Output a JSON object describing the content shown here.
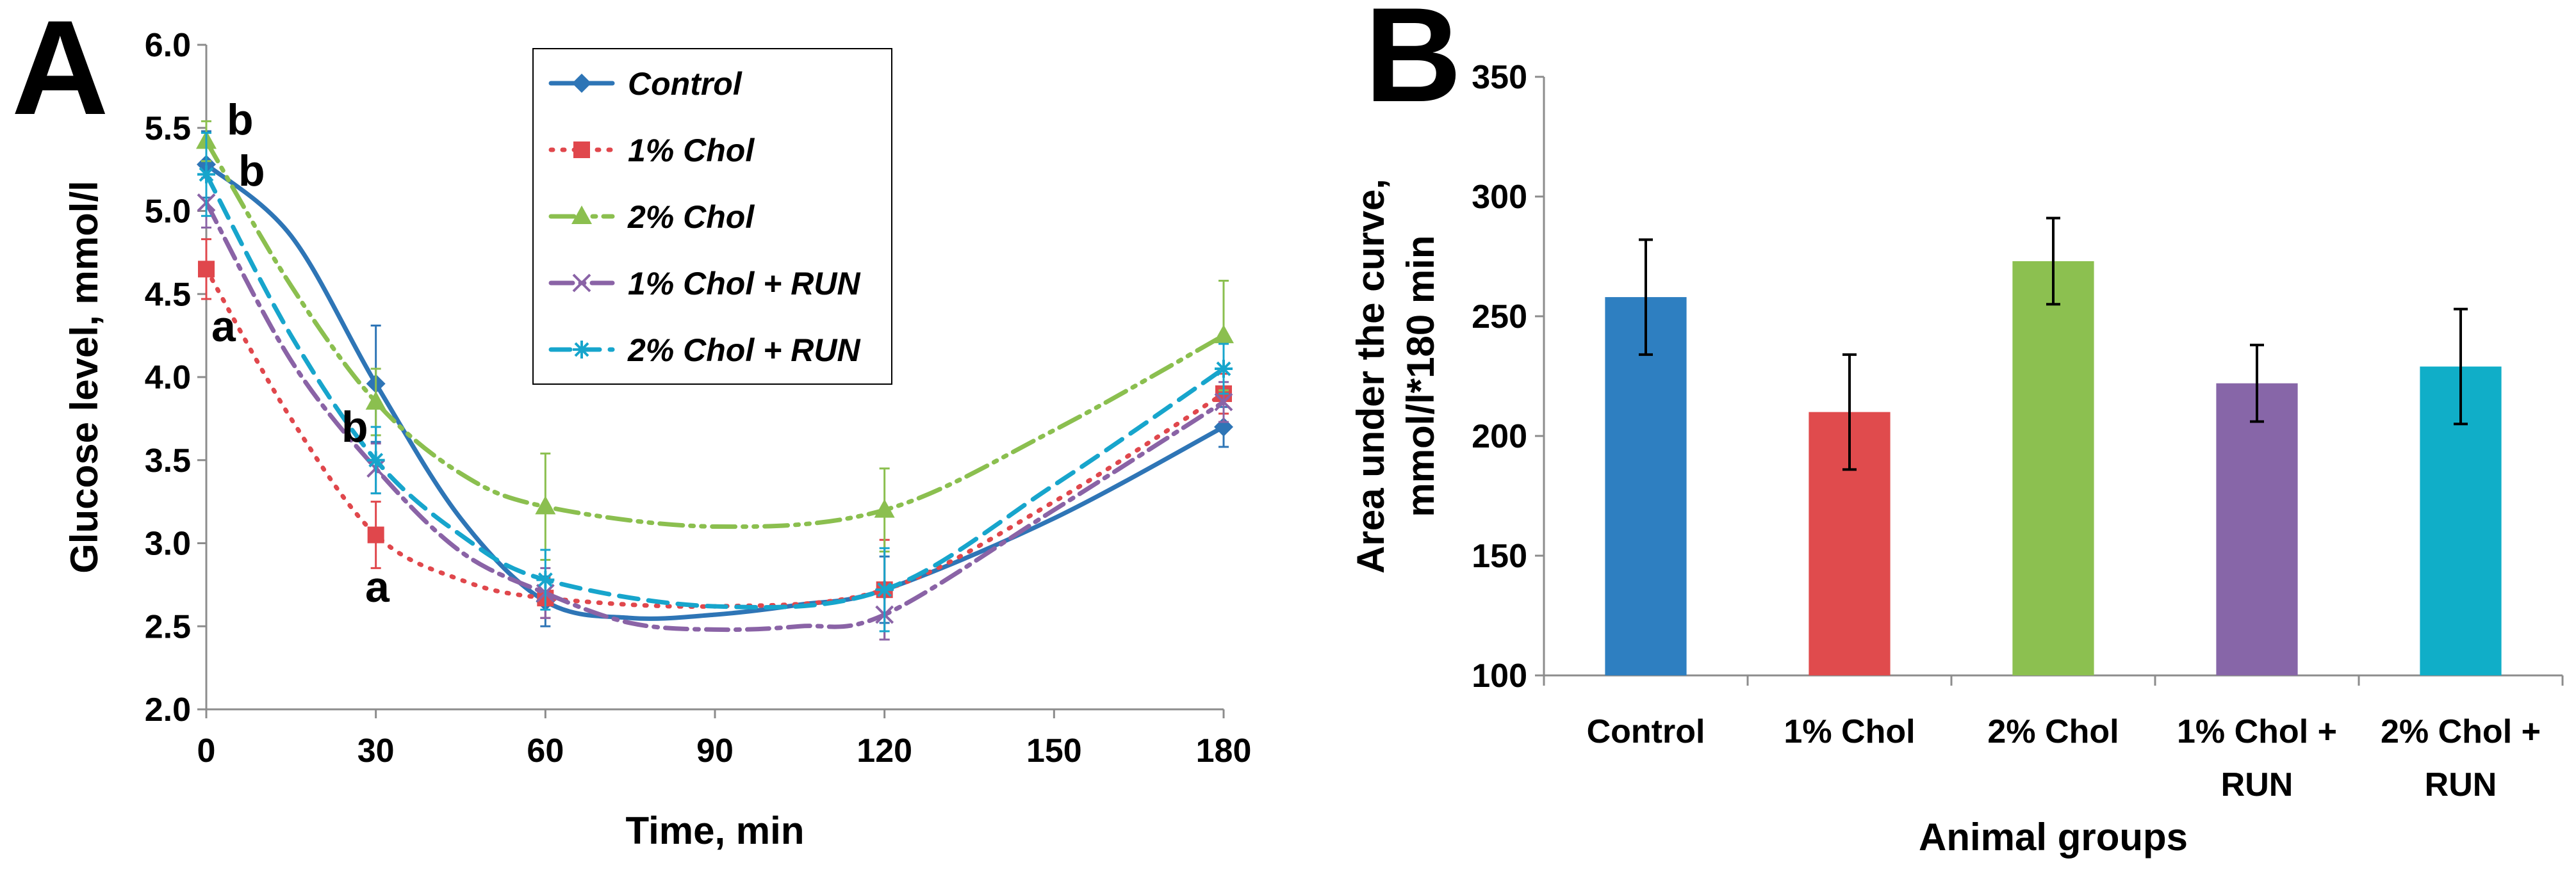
{
  "panels": {
    "a_label": "A",
    "b_label": "B"
  },
  "chart_data": [
    {
      "id": "A",
      "type": "line",
      "title": "",
      "xlabel": "Time, min",
      "ylabel": "Glucose level, mmol/l",
      "xlim": [
        0,
        180
      ],
      "ylim": [
        2.0,
        6.0
      ],
      "xticks": [
        0,
        30,
        60,
        90,
        120,
        150,
        180
      ],
      "yticks": [
        "2.0",
        "2.5",
        "3.0",
        "3.5",
        "4.0",
        "4.5",
        "5.0",
        "5.5",
        "6.0"
      ],
      "x": [
        0,
        30,
        60,
        120,
        180
      ],
      "legend_position": "top-center",
      "series": [
        {
          "name": "Control",
          "color": "#2e75b6",
          "dash": "solid",
          "marker": "diamond",
          "values": [
            5.28,
            3.96,
            2.65,
            2.72,
            3.7
          ],
          "errors": [
            0.2,
            0.35,
            0.15,
            0.2,
            0.12
          ],
          "curve": [
            [
              0,
              5.28
            ],
            [
              15,
              4.85
            ],
            [
              30,
              3.96
            ],
            [
              45,
              3.15
            ],
            [
              60,
              2.65
            ],
            [
              75,
              2.55
            ],
            [
              90,
              2.57
            ],
            [
              105,
              2.63
            ],
            [
              120,
              2.72
            ],
            [
              150,
              3.15
            ],
            [
              180,
              3.7
            ]
          ]
        },
        {
          "name": "1% Chol",
          "color": "#e0474c",
          "dash": "dot",
          "marker": "square",
          "values": [
            4.65,
            3.05,
            2.67,
            2.72,
            3.9
          ],
          "errors": [
            0.18,
            0.2,
            0.12,
            0.3,
            0.12
          ],
          "curve": [
            [
              0,
              4.65
            ],
            [
              15,
              3.75
            ],
            [
              30,
              3.05
            ],
            [
              45,
              2.78
            ],
            [
              60,
              2.67
            ],
            [
              90,
              2.62
            ],
            [
              120,
              2.72
            ],
            [
              150,
              3.25
            ],
            [
              180,
              3.9
            ]
          ]
        },
        {
          "name": "2% Chol",
          "color": "#8bbf4f",
          "dash": "dashdotdot",
          "marker": "triangle",
          "values": [
            5.42,
            3.85,
            3.22,
            3.2,
            4.25
          ],
          "errors": [
            0.12,
            0.2,
            0.32,
            0.25,
            0.33
          ],
          "curve": [
            [
              0,
              5.42
            ],
            [
              15,
              4.55
            ],
            [
              30,
              3.85
            ],
            [
              45,
              3.42
            ],
            [
              60,
              3.22
            ],
            [
              90,
              3.1
            ],
            [
              120,
              3.2
            ],
            [
              150,
              3.68
            ],
            [
              180,
              4.25
            ]
          ]
        },
        {
          "name": "1% Chol + RUN",
          "color": "#8a63a6",
          "dash": "dashdot",
          "marker": "x",
          "values": [
            5.05,
            3.45,
            2.7,
            2.57,
            3.85
          ],
          "errors": [
            0.15,
            0.15,
            0.15,
            0.15,
            0.12
          ],
          "curve": [
            [
              0,
              5.05
            ],
            [
              15,
              4.1
            ],
            [
              30,
              3.45
            ],
            [
              45,
              2.95
            ],
            [
              60,
              2.7
            ],
            [
              75,
              2.52
            ],
            [
              90,
              2.48
            ],
            [
              105,
              2.5
            ],
            [
              120,
              2.57
            ],
            [
              150,
              3.2
            ],
            [
              180,
              3.85
            ]
          ]
        },
        {
          "name": "2% Chol + RUN",
          "color": "#17a5cc",
          "dash": "dash",
          "marker": "star",
          "values": [
            5.22,
            3.5,
            2.78,
            2.72,
            4.05
          ],
          "errors": [
            0.25,
            0.2,
            0.18,
            0.25,
            0.15
          ],
          "curve": [
            [
              0,
              5.22
            ],
            [
              15,
              4.25
            ],
            [
              30,
              3.5
            ],
            [
              45,
              3.05
            ],
            [
              60,
              2.78
            ],
            [
              90,
              2.62
            ],
            [
              120,
              2.72
            ],
            [
              150,
              3.35
            ],
            [
              180,
              4.05
            ]
          ]
        }
      ],
      "annotations": [
        {
          "text": "b",
          "x": 0,
          "y": 5.42
        },
        {
          "text": "b",
          "x": 0,
          "y": 5.25
        },
        {
          "text": "a",
          "x": 0,
          "y": 4.65
        },
        {
          "text": "b",
          "x": 30,
          "y": 3.85
        },
        {
          "text": "a",
          "x": 30,
          "y": 3.05
        }
      ]
    },
    {
      "id": "B",
      "type": "bar",
      "title": "",
      "xlabel": "Animal groups",
      "ylabel": "Area under the curve, mmol/l*180 min",
      "ylim": [
        100,
        350
      ],
      "yticks": [
        100,
        150,
        200,
        250,
        300,
        350
      ],
      "categories": [
        [
          "Control"
        ],
        [
          "1% Chol"
        ],
        [
          "2% Chol"
        ],
        [
          "1% Chol +",
          "RUN"
        ],
        [
          "2% Chol +",
          "RUN"
        ]
      ],
      "values": [
        258,
        210,
        273,
        222,
        229
      ],
      "errors": [
        24,
        24,
        18,
        16,
        24
      ],
      "colors": [
        "#2e7fc1",
        "#e04b4d",
        "#8cc050",
        "#8766a8",
        "#10aec8"
      ]
    }
  ]
}
